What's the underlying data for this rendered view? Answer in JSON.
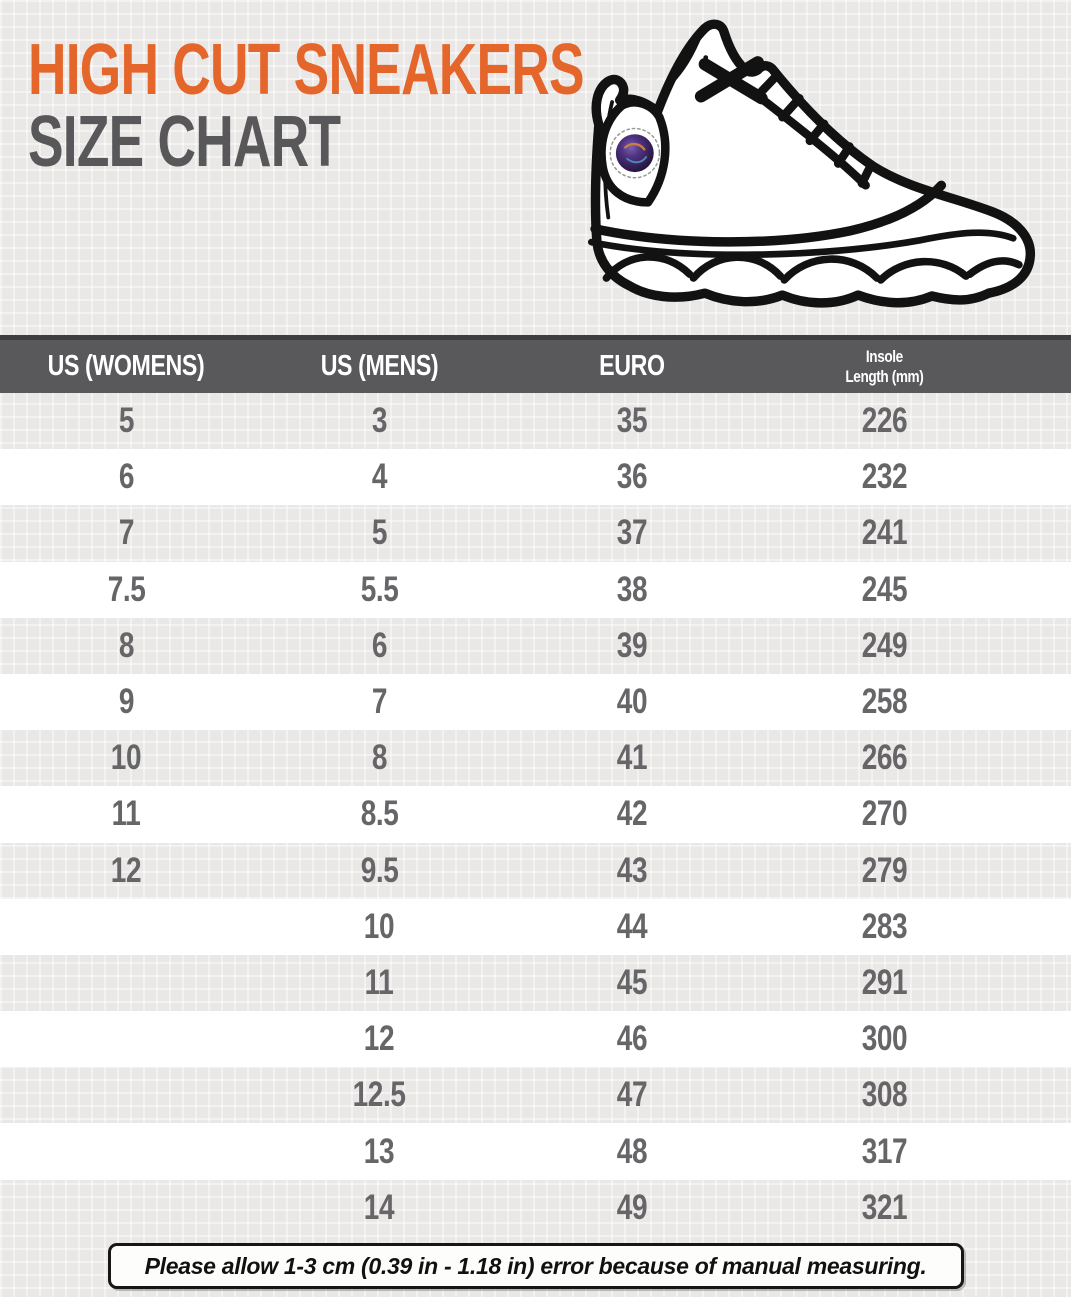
{
  "title": {
    "line1": "HIGH CUT SNEAKERS",
    "line2": "SIZE CHART"
  },
  "hero": {
    "illustration": "high-cut-sneaker-line-drawing",
    "emblem": "holographic-ankle-badge"
  },
  "colors": {
    "accent": "#E4662B",
    "title_gray": "#58585A",
    "header_bg": "#59585A",
    "header_top_edge": "#3F3D3F",
    "cell_text": "#666568",
    "note_border": "#161616"
  },
  "table": {
    "columns": [
      {
        "label": "US (WOMENS)",
        "sub": ""
      },
      {
        "label": "US (MENS)",
        "sub": ""
      },
      {
        "label": "EURO",
        "sub": ""
      },
      {
        "label": "Insole",
        "sub": "Length (mm)"
      }
    ],
    "rows": [
      [
        "5",
        "3",
        "35",
        "226"
      ],
      [
        "6",
        "4",
        "36",
        "232"
      ],
      [
        "7",
        "5",
        "37",
        "241"
      ],
      [
        "7.5",
        "5.5",
        "38",
        "245"
      ],
      [
        "8",
        "6",
        "39",
        "249"
      ],
      [
        "9",
        "7",
        "40",
        "258"
      ],
      [
        "10",
        "8",
        "41",
        "266"
      ],
      [
        "11",
        "8.5",
        "42",
        "270"
      ],
      [
        "12",
        "9.5",
        "43",
        "279"
      ],
      [
        "",
        "10",
        "44",
        "283"
      ],
      [
        "",
        "11",
        "45",
        "291"
      ],
      [
        "",
        "12",
        "46",
        "300"
      ],
      [
        "",
        "12.5",
        "47",
        "308"
      ],
      [
        "",
        "13",
        "48",
        "317"
      ],
      [
        "",
        "14",
        "49",
        "321"
      ]
    ]
  },
  "note": {
    "text": "Please allow 1-3 cm (0.39 in - 1.18 in) error because of manual measuring."
  }
}
